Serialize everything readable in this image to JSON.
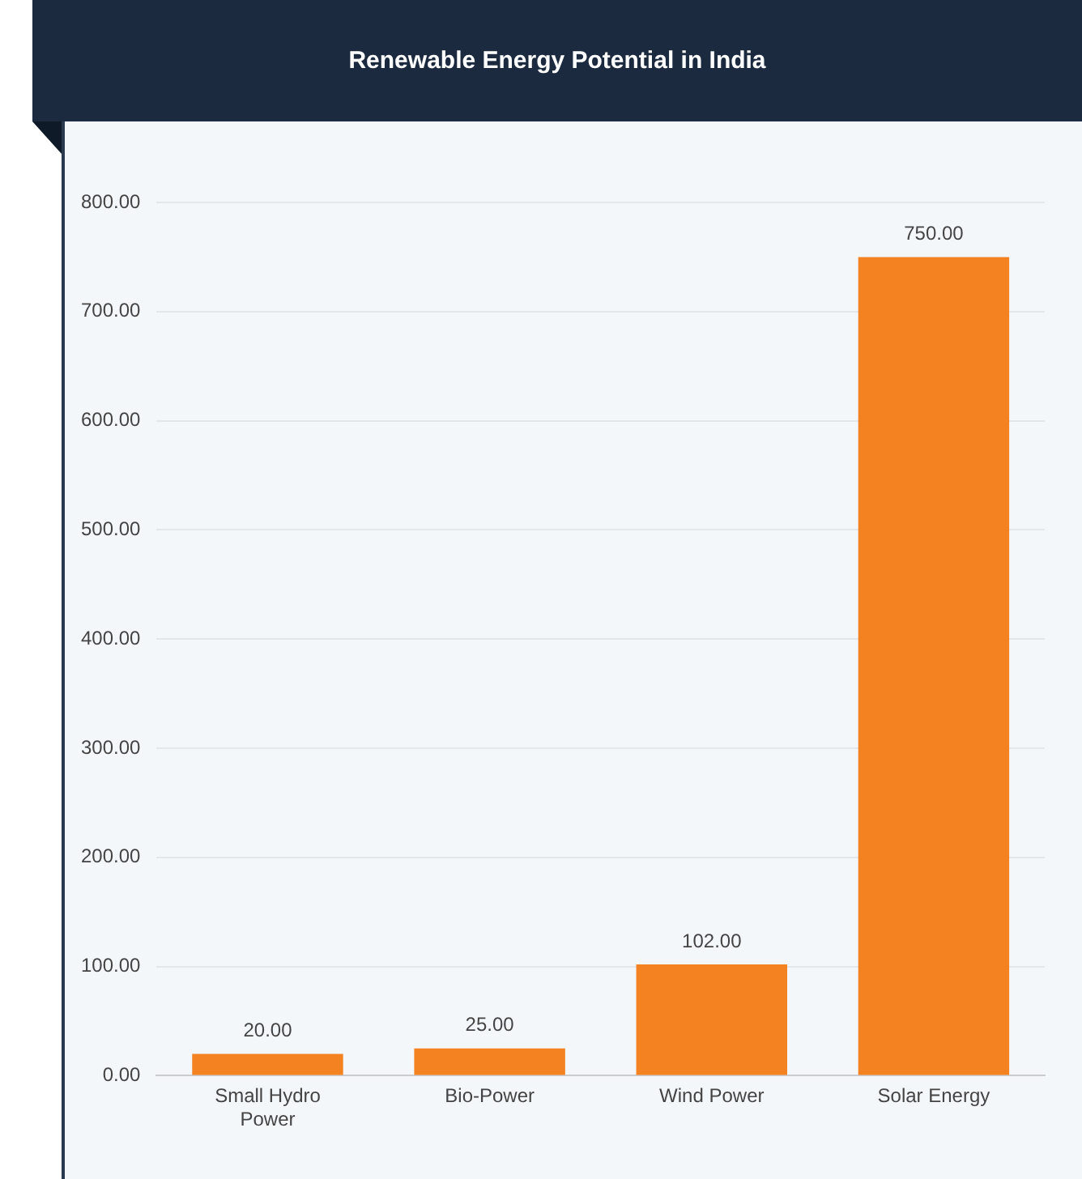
{
  "chart_data": {
    "type": "bar",
    "title": "Renewable Energy Potential in India",
    "categories": [
      "Small Hydro Power",
      "Bio-Power",
      "Wind Power",
      "Solar Energy"
    ],
    "values": [
      20,
      25,
      102,
      750
    ],
    "value_labels": [
      "20.00",
      "25.00",
      "102.00",
      "750.00"
    ],
    "color": "#f58220",
    "ylim": [
      0,
      800
    ],
    "yticks": [
      {
        "value": 0,
        "label": "0.00"
      },
      {
        "value": 100,
        "label": "100.00"
      },
      {
        "value": 200,
        "label": "200.00"
      },
      {
        "value": 300,
        "label": "300.00"
      },
      {
        "value": 400,
        "label": "400.00"
      },
      {
        "value": 500,
        "label": "500.00"
      },
      {
        "value": 600,
        "label": "600.00"
      },
      {
        "value": 700,
        "label": "700.00"
      },
      {
        "value": 800,
        "label": "800.00"
      }
    ],
    "grid": "y"
  }
}
